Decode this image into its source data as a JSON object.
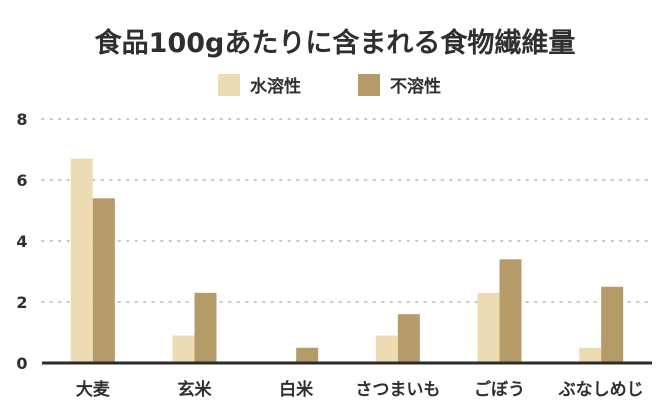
{
  "chart_data": {
    "type": "bar",
    "title": "食品100gあたりに含まれる食物繊維量",
    "categories": [
      "大麦",
      "玄米",
      "白米",
      "さつまいも",
      "ごぼう",
      "ぶなしめじ"
    ],
    "series": [
      {
        "name": "水溶性",
        "color": "#eddcb3",
        "values": [
          6.7,
          0.9,
          0,
          0.9,
          2.3,
          0.5
        ]
      },
      {
        "name": "不溶性",
        "color": "#b59b67",
        "values": [
          5.4,
          2.3,
          0.5,
          1.6,
          3.4,
          2.5
        ]
      }
    ],
    "ylim": [
      0,
      8
    ],
    "yticks": [
      0,
      2,
      4,
      6,
      8
    ],
    "xlabel": "",
    "ylabel": "",
    "grid": true,
    "legend": "top-center"
  }
}
